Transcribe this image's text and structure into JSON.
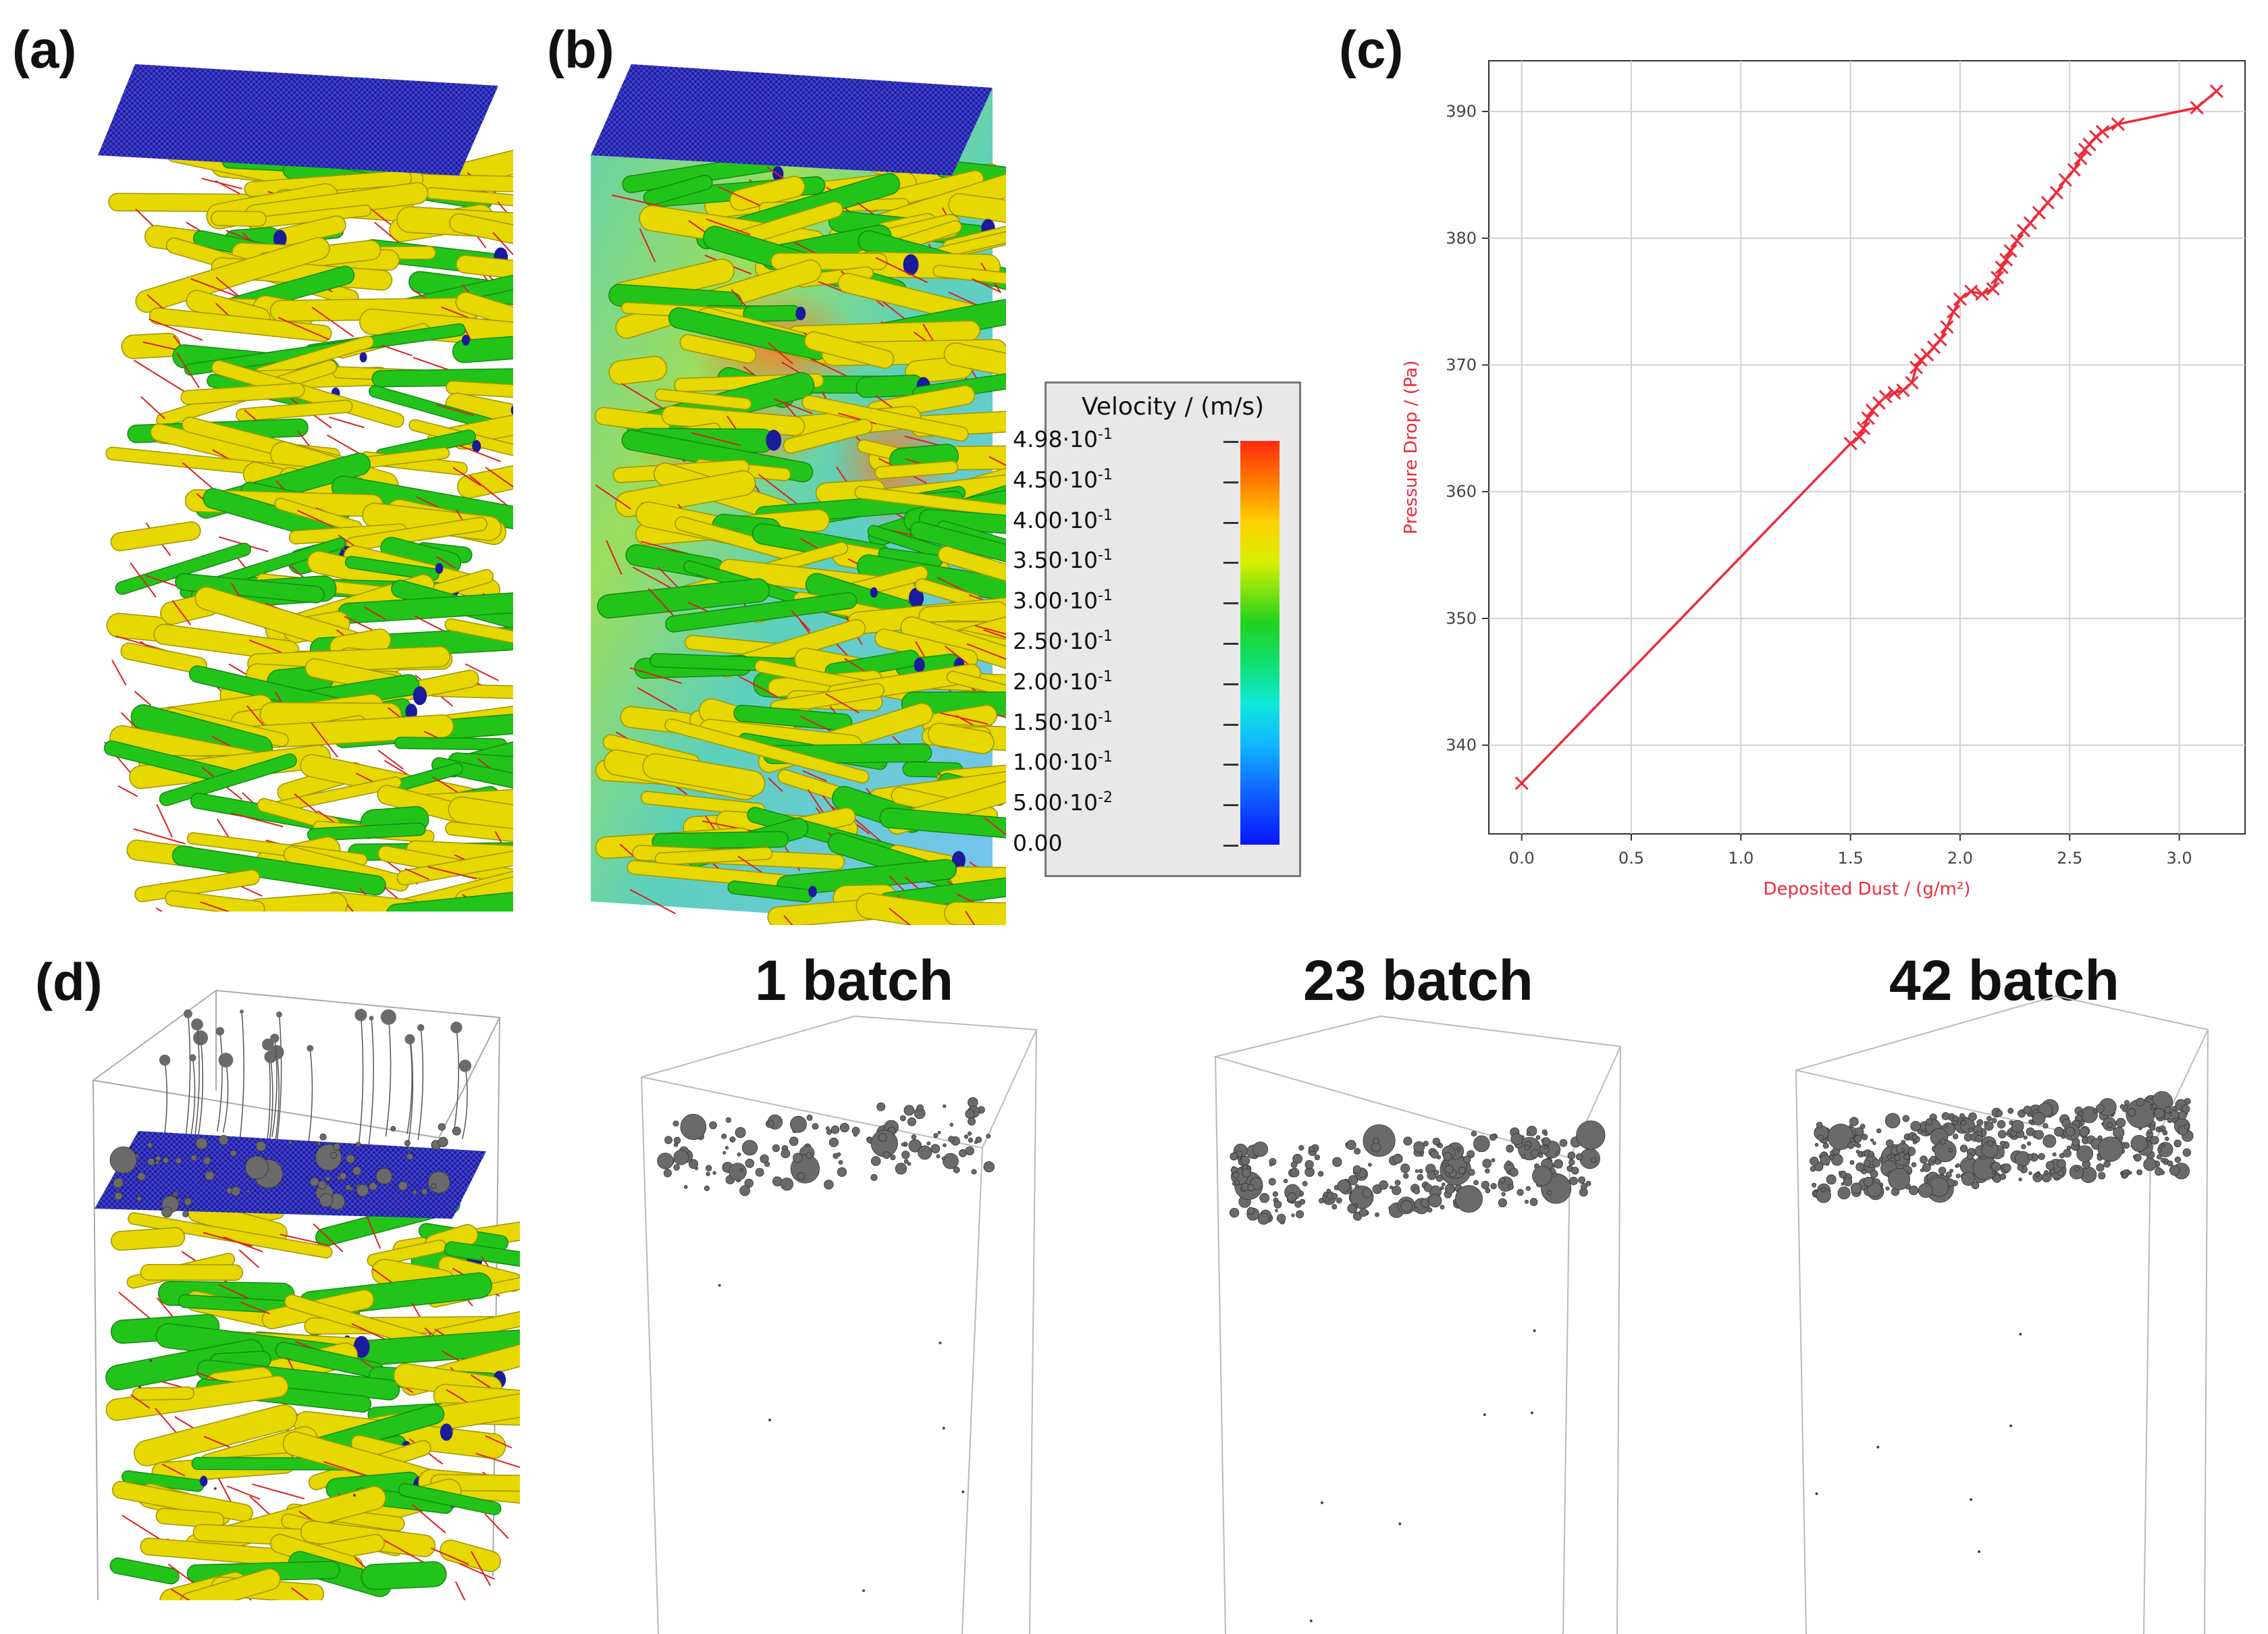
{
  "panel_labels": {
    "a": "(a)",
    "b": "(b)",
    "c": "(c)",
    "d": "(d)"
  },
  "batch_titles": [
    "1 batch",
    "23 batch",
    "42 batch"
  ],
  "legend": {
    "title": "Velocity / (m/s)",
    "ticks": [
      {
        "mantissa": "4.98",
        "exp": "-1"
      },
      {
        "mantissa": "4.50",
        "exp": "-1"
      },
      {
        "mantissa": "4.00",
        "exp": "-1"
      },
      {
        "mantissa": "3.50",
        "exp": "-1"
      },
      {
        "mantissa": "3.00",
        "exp": "-1"
      },
      {
        "mantissa": "2.50",
        "exp": "-1"
      },
      {
        "mantissa": "2.00",
        "exp": "-1"
      },
      {
        "mantissa": "1.50",
        "exp": "-1"
      },
      {
        "mantissa": "1.00",
        "exp": "-1"
      },
      {
        "mantissa": "5.00",
        "exp": "-2"
      },
      {
        "mantissa": "0.00",
        "exp": ""
      }
    ]
  },
  "colors": {
    "fiber_yellow": "#e6d800",
    "fiber_green": "#22c41a",
    "mesh_blue": "#1a1a9c",
    "plot_red": "#ee2a3a",
    "particle_gray": "#6a6a6a"
  },
  "chart_data": {
    "type": "line",
    "title": "",
    "xlabel": "Deposited Dust / (g/m²)",
    "ylabel": "Pressure Drop / (Pa)",
    "xlim": [
      -0.15,
      3.3
    ],
    "ylim": [
      333,
      394
    ],
    "xticks": [
      "0.0",
      "0.5",
      "1.0",
      "1.5",
      "2.0",
      "2.5",
      "3.0"
    ],
    "yticks": [
      "340",
      "350",
      "360",
      "370",
      "380",
      "390"
    ],
    "grid": true,
    "marker": "x",
    "series": [
      {
        "x": [
          0.0,
          1.5,
          1.54,
          1.56,
          1.58,
          1.6,
          1.63,
          1.66,
          1.7,
          1.74,
          1.78,
          1.8,
          1.82,
          1.85,
          1.88,
          1.91,
          1.94,
          1.97,
          2.0,
          2.05,
          2.1,
          2.15,
          2.17,
          2.19,
          2.21,
          2.23,
          2.26,
          2.29,
          2.32,
          2.36,
          2.4,
          2.44,
          2.48,
          2.52,
          2.55,
          2.57,
          2.59,
          2.62,
          2.65,
          2.72,
          3.08,
          3.17
        ],
        "y": [
          337.0,
          363.8,
          364.3,
          365.0,
          365.8,
          366.4,
          367.0,
          367.5,
          367.8,
          368.0,
          368.6,
          369.8,
          370.4,
          370.8,
          371.4,
          372.0,
          373.0,
          374.2,
          375.2,
          375.8,
          375.6,
          376.0,
          376.9,
          377.7,
          378.3,
          379.0,
          379.8,
          380.6,
          381.2,
          382.0,
          382.8,
          383.6,
          384.6,
          385.4,
          386.3,
          387.0,
          387.4,
          388.0,
          388.4,
          389.0,
          390.3,
          391.6
        ]
      }
    ]
  }
}
